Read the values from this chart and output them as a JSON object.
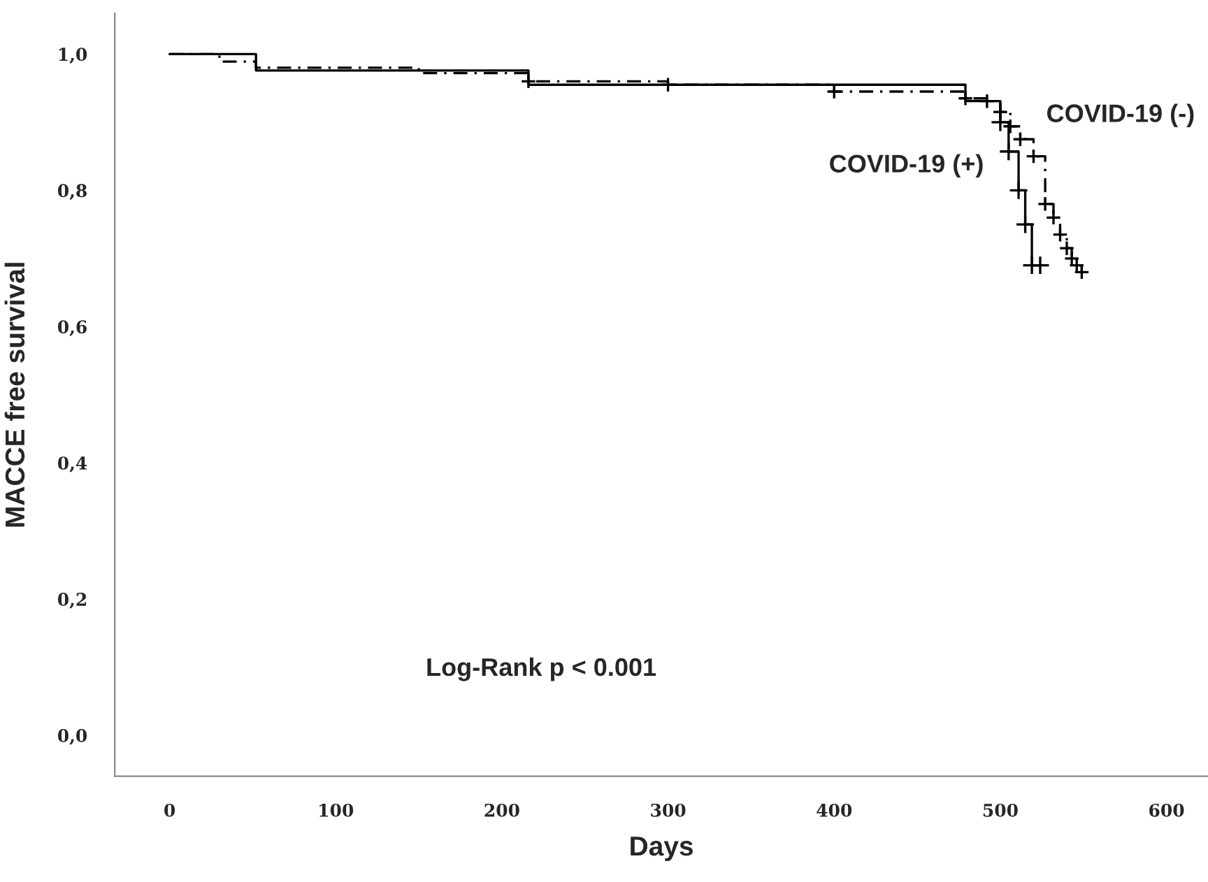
{
  "chart_data": {
    "type": "step",
    "xlabel": "Days",
    "ylabel": "MACCE free survival",
    "xlim": [
      -33,
      625
    ],
    "ylim": [
      -0.06,
      1.06
    ],
    "xticks": [
      0,
      100,
      200,
      300,
      400,
      500,
      600
    ],
    "yticks": [
      {
        "value": 0,
        "label": "0,0"
      },
      {
        "value": 0.2,
        "label": "0,2"
      },
      {
        "value": 0.4,
        "label": "0,4"
      },
      {
        "value": 0.6,
        "label": "0,6"
      },
      {
        "value": 0.8,
        "label": "0,8"
      },
      {
        "value": 1.0,
        "label": "1,0"
      }
    ],
    "grid": false,
    "legend": false,
    "marker": "cross",
    "series": [
      {
        "name": "COVID-19 (+)",
        "color": "#000000",
        "line_style": "solid",
        "x": [
          0,
          52,
          216,
          479,
          500,
          505,
          511,
          515,
          519,
          524
        ],
        "values": [
          1.0,
          0.976,
          0.955,
          0.931,
          0.9,
          0.857,
          0.8,
          0.75,
          0.69,
          0.69
        ]
      },
      {
        "name": "COVID-19 (-)",
        "color": "#000000",
        "line_style": "dashed",
        "x": [
          0,
          30,
          52,
          150,
          216,
          300,
          400,
          479,
          492,
          500,
          506,
          512,
          520,
          527,
          532,
          536,
          540,
          543,
          546,
          549
        ],
        "values": [
          1.0,
          0.989,
          0.98,
          0.972,
          0.96,
          0.955,
          0.945,
          0.935,
          0.931,
          0.915,
          0.894,
          0.875,
          0.85,
          0.78,
          0.76,
          0.735,
          0.715,
          0.7,
          0.69,
          0.68
        ]
      }
    ],
    "annotations": [
      "Log-Rank p < 0.001"
    ]
  }
}
